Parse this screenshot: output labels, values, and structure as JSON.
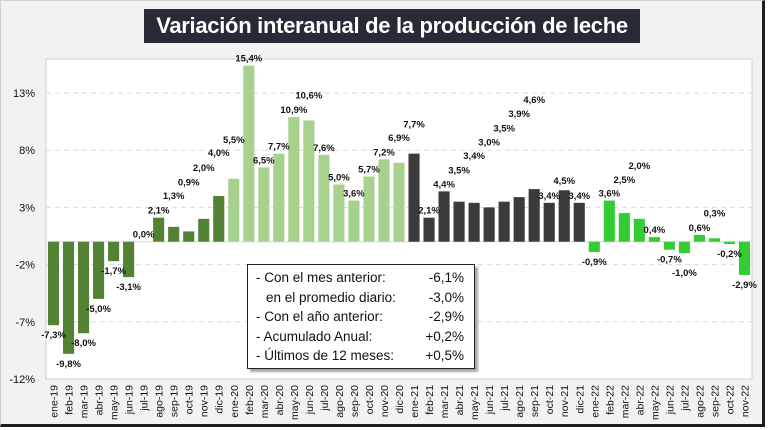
{
  "title": "Variación interanual de la producción de leche",
  "chart_data": {
    "type": "bar",
    "title": "Variación interanual de la producción de leche",
    "xlabel": "",
    "ylabel": "",
    "ylim": [
      -12,
      18
    ],
    "yticks": [
      13,
      8,
      3,
      -2,
      -7,
      -12
    ],
    "ytick_labels": [
      "13%",
      "8%",
      "3%",
      "-2%",
      "-7%",
      "-12%"
    ],
    "grid": true,
    "categories": [
      "ene-19",
      "feb-19",
      "mar-19",
      "abr-19",
      "may-19",
      "jun-19",
      "jul-19",
      "ago-19",
      "sep-19",
      "oct-19",
      "nov-19",
      "dic-19",
      "ene-20",
      "feb-20",
      "mar-20",
      "abr-20",
      "may-20",
      "jun-20",
      "jul-20",
      "ago-20",
      "sep-20",
      "oct-20",
      "nov-20",
      "dic-20",
      "ene-21",
      "feb-21",
      "mar-21",
      "abr-21",
      "may-21",
      "jun-21",
      "jul-21",
      "ago-21",
      "sep-21",
      "oct-21",
      "nov-21",
      "dic-21",
      "ene-22",
      "feb-22",
      "mar-22",
      "abr-22",
      "may-22",
      "jun-22",
      "jul-22",
      "ago-22",
      "sep-22",
      "oct-22",
      "nov-22"
    ],
    "values": [
      -7.3,
      -9.8,
      -8.0,
      -5.0,
      -1.7,
      -3.1,
      0.0,
      2.1,
      1.3,
      0.9,
      2.0,
      4.0,
      5.5,
      15.4,
      6.5,
      7.7,
      10.9,
      10.6,
      7.6,
      5.0,
      3.6,
      5.7,
      7.2,
      6.9,
      7.7,
      2.1,
      4.4,
      3.5,
      3.4,
      3.0,
      3.5,
      3.9,
      4.6,
      3.4,
      4.5,
      3.4,
      -0.9,
      3.6,
      2.5,
      2.0,
      0.4,
      -0.7,
      -1.0,
      0.6,
      0.3,
      -0.2,
      -2.9
    ],
    "value_labels": [
      "-7,3%",
      "-9,8%",
      "-8,0%",
      "-5,0%",
      "-1,7%",
      "-3,1%",
      "0,0%",
      "2,1%",
      "1,3%",
      "0,9%",
      "2,0%",
      "4,0%",
      "5,5%",
      "15,4%",
      "6,5%",
      "7,7%",
      "10,9%",
      "10,6%",
      "7,6%",
      "5,0%",
      "3,6%",
      "5,7%",
      "7,2%",
      "6,9%",
      "7,7%",
      "2,1%",
      "4,4%",
      "3,5%",
      "3,4%",
      "3,0%",
      "3,5%",
      "3,9%",
      "4,6%",
      "3,4%",
      "4,5%",
      "3,4%",
      "-0,9%",
      "3,6%",
      "2,5%",
      "2,0%",
      "0,4%",
      "-0,7%",
      "-1,0%",
      "0,6%",
      "0,3%",
      "-0,2%",
      "-2,9%"
    ],
    "series_groups": [
      {
        "name": "2019",
        "from": 0,
        "to": 11,
        "color": "#548235"
      },
      {
        "name": "2020",
        "from": 12,
        "to": 23,
        "color": "#a9d18e"
      },
      {
        "name": "2021",
        "from": 24,
        "to": 35,
        "color": "#3b3b3b"
      },
      {
        "name": "2022",
        "from": 36,
        "to": 46,
        "color": "#33cc33"
      }
    ]
  },
  "info_box": {
    "rows": [
      {
        "label": "- Con el mes anterior:",
        "value": "-6,1%",
        "indent": false
      },
      {
        "label": "en el promedio diario:",
        "value": "-3,0%",
        "indent": true
      },
      {
        "label": "- Con el año anterior:",
        "value": "-2,9%",
        "indent": false
      },
      {
        "label": "- Acumulado Anual:",
        "value": "+0,2%",
        "indent": false
      },
      {
        "label": "- Últimos de 12 meses:",
        "value": "+0,5%",
        "indent": false
      }
    ]
  },
  "colors": {
    "grid": "#d9d9d9",
    "plot_bg": "#ffffff",
    "frame_bg": "#f2f2f2",
    "title_bg": "#262b35"
  }
}
